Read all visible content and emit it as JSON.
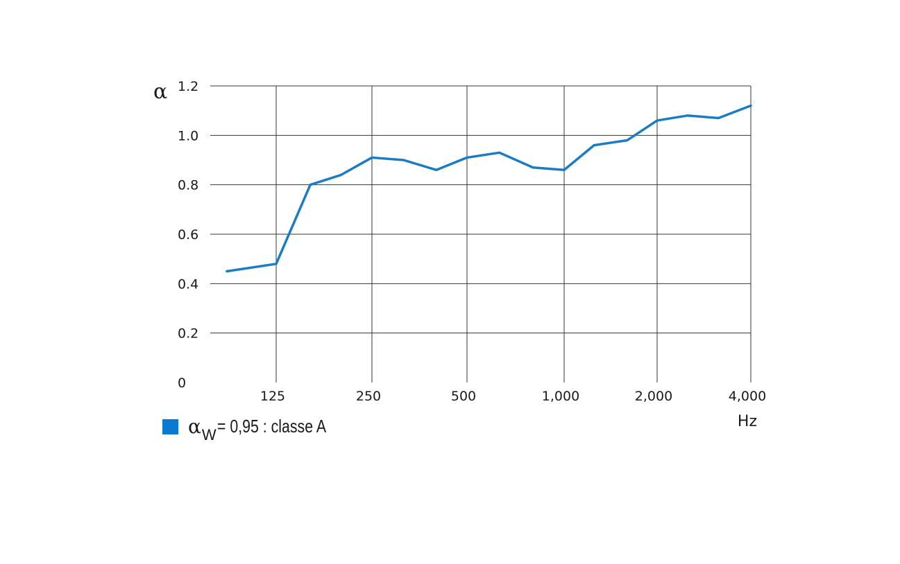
{
  "chart_data": {
    "type": "line",
    "y_axis_symbol": "α",
    "x_unit": "Hz",
    "x_tick_labels": [
      "125",
      "250",
      "500",
      "1,000",
      "2,000",
      "4,000"
    ],
    "y_tick_labels": [
      "0",
      "0.2",
      "0.4",
      "0.6",
      "0.8",
      "1.0",
      "1.2"
    ],
    "y_ticks": [
      0,
      0.2,
      0.4,
      0.6,
      0.8,
      1.0,
      1.2
    ],
    "ylim": [
      0,
      1.2
    ],
    "x_scale": "log (third-octave bands)",
    "grid": true,
    "series": [
      {
        "color": "#1a7cc4",
        "x": [
          100,
          125,
          160,
          200,
          250,
          315,
          400,
          500,
          630,
          800,
          1000,
          1250,
          1600,
          2000,
          2500,
          3150,
          4000
        ],
        "y": [
          0.45,
          0.48,
          0.8,
          0.84,
          0.91,
          0.9,
          0.86,
          0.91,
          0.93,
          0.87,
          0.86,
          0.96,
          0.98,
          1.06,
          1.08,
          1.07,
          1.12
        ]
      }
    ]
  },
  "legend": {
    "swatch_color": "#0a7ad1",
    "symbol": "α",
    "subscript": "W",
    "text": "= 0,95 : classe A"
  }
}
